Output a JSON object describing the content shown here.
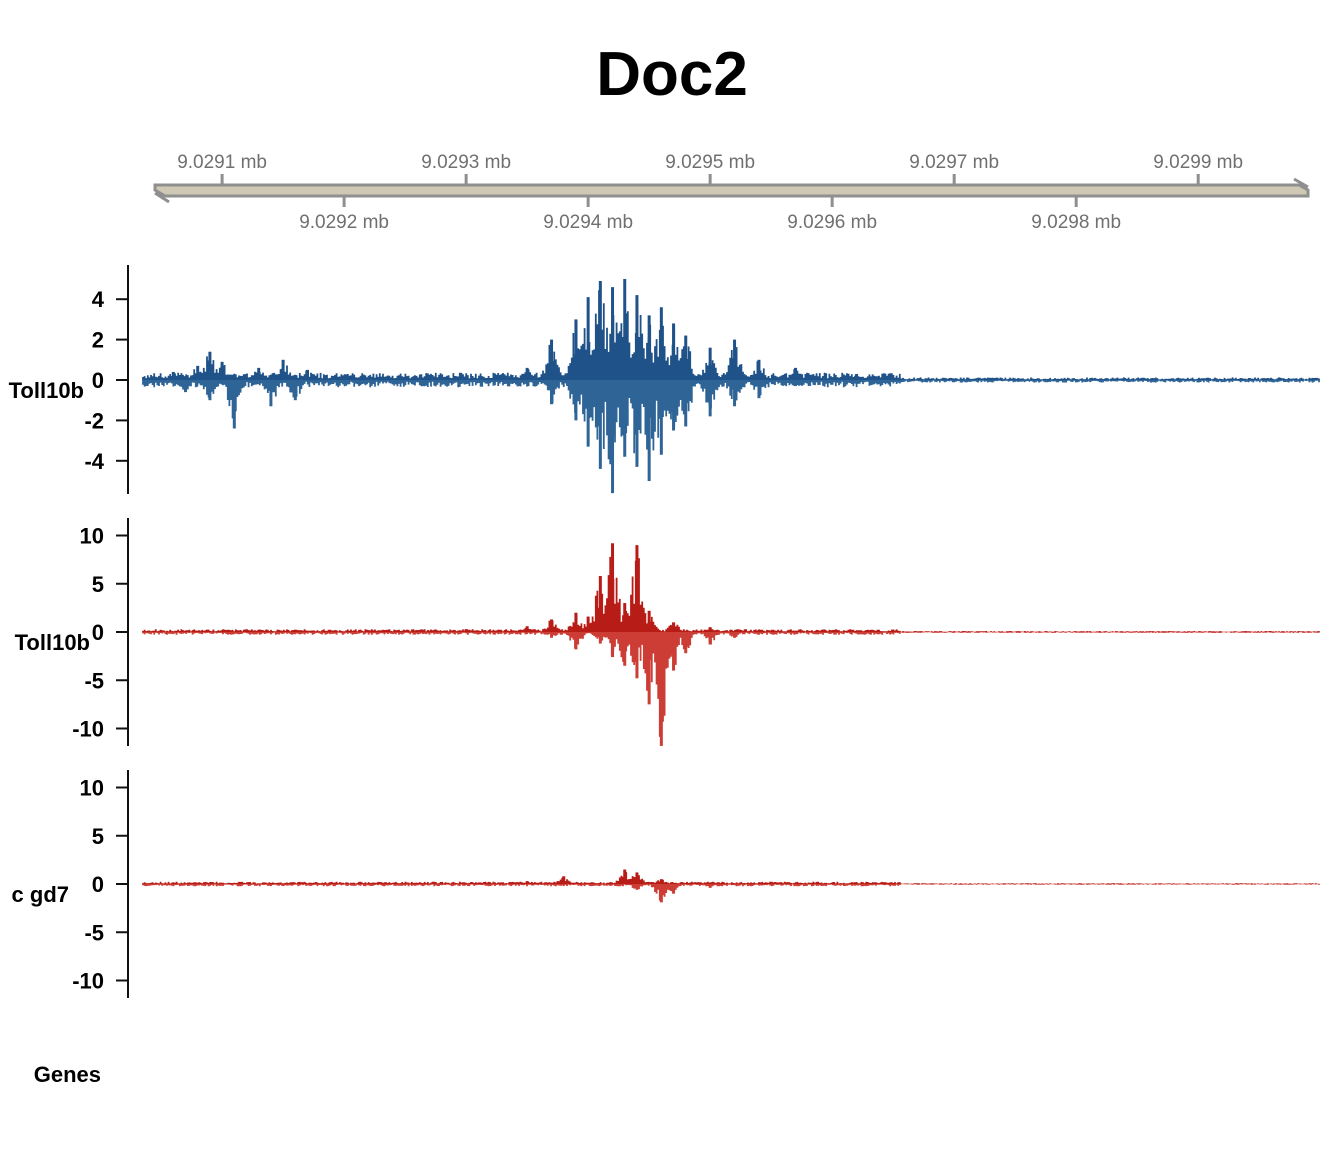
{
  "title": "Doc2",
  "colors": {
    "blue_track": "#1f5288",
    "blue_track_negative": "#2f6497",
    "red_track": "#b81c16",
    "red_track_negative": "#cc3d35",
    "axis": "#111111",
    "coord_axis": "#8f8f8f",
    "coord_axis_fill": "#cfc8b4",
    "coord_label": "#707070"
  },
  "chart_data": {
    "type": "genome-browser-tracks",
    "x_unit": "mb",
    "xlim": [
      9.029045,
      9.02999
    ],
    "genome_axis": {
      "upper_ticks": [
        {
          "position": 9.0291,
          "label": "9.0291 mb"
        },
        {
          "position": 9.0293,
          "label": "9.0293 mb"
        },
        {
          "position": 9.0295,
          "label": "9.0295 mb"
        },
        {
          "position": 9.0297,
          "label": "9.0297 mb"
        },
        {
          "position": 9.0299,
          "label": "9.0299 mb"
        }
      ],
      "lower_ticks": [
        {
          "position": 9.0292,
          "label": "9.0292 mb"
        },
        {
          "position": 9.0294,
          "label": "9.0294 mb"
        },
        {
          "position": 9.0296,
          "label": "9.0296 mb"
        },
        {
          "position": 9.0298,
          "label": "9.0298 mb"
        }
      ]
    },
    "tracks": [
      {
        "name": "Toll10b",
        "color": "#1f5288",
        "ylim": [
          -5.7,
          5.7
        ],
        "yticks": [
          {
            "value": 4,
            "label": "4"
          },
          {
            "value": 2,
            "label": "2"
          },
          {
            "value": 0,
            "label": "0"
          },
          {
            "value": -2,
            "label": "-2"
          },
          {
            "value": -4,
            "label": "-4"
          }
        ],
        "positive_peaks": [
          {
            "x": 9.02906,
            "y": 0.4
          },
          {
            "x": 9.02908,
            "y": 0.7
          },
          {
            "x": 9.02909,
            "y": 1.4
          },
          {
            "x": 9.0291,
            "y": 0.9
          },
          {
            "x": 9.02913,
            "y": 0.6
          },
          {
            "x": 9.02915,
            "y": 1.0
          },
          {
            "x": 9.02917,
            "y": 0.5
          },
          {
            "x": 9.02935,
            "y": 0.6
          },
          {
            "x": 9.02937,
            "y": 2.0
          },
          {
            "x": 9.02939,
            "y": 3.0
          },
          {
            "x": 9.0294,
            "y": 4.1
          },
          {
            "x": 9.02941,
            "y": 4.9
          },
          {
            "x": 9.02942,
            "y": 4.6
          },
          {
            "x": 9.02943,
            "y": 5.0
          },
          {
            "x": 9.02944,
            "y": 4.2
          },
          {
            "x": 9.02945,
            "y": 3.2
          },
          {
            "x": 9.02946,
            "y": 3.6
          },
          {
            "x": 9.02947,
            "y": 2.8
          },
          {
            "x": 9.02948,
            "y": 2.2
          },
          {
            "x": 9.0295,
            "y": 1.6
          },
          {
            "x": 9.02952,
            "y": 2.0
          },
          {
            "x": 9.02954,
            "y": 1.0
          },
          {
            "x": 9.02957,
            "y": 0.6
          },
          {
            "x": 9.02962,
            "y": 0.3
          }
        ],
        "negative_peaks": [
          {
            "x": 9.02907,
            "y": -0.6
          },
          {
            "x": 9.02909,
            "y": -1.0
          },
          {
            "x": 9.02911,
            "y": -2.4
          },
          {
            "x": 9.02914,
            "y": -1.3
          },
          {
            "x": 9.02916,
            "y": -1.0
          },
          {
            "x": 9.02937,
            "y": -1.2
          },
          {
            "x": 9.02939,
            "y": -2.0
          },
          {
            "x": 9.0294,
            "y": -3.3
          },
          {
            "x": 9.02941,
            "y": -4.4
          },
          {
            "x": 9.02942,
            "y": -5.6
          },
          {
            "x": 9.02943,
            "y": -3.8
          },
          {
            "x": 9.02944,
            "y": -4.3
          },
          {
            "x": 9.02945,
            "y": -5.0
          },
          {
            "x": 9.02946,
            "y": -3.7
          },
          {
            "x": 9.02947,
            "y": -2.5
          },
          {
            "x": 9.02948,
            "y": -2.3
          },
          {
            "x": 9.0295,
            "y": -1.8
          },
          {
            "x": 9.02952,
            "y": -1.3
          },
          {
            "x": 9.02954,
            "y": -0.9
          },
          {
            "x": 9.02957,
            "y": -0.3
          }
        ]
      },
      {
        "name": "Toll10b",
        "color": "#b81c16",
        "ylim": [
          -12,
          12
        ],
        "yticks": [
          {
            "value": 10,
            "label": "10"
          },
          {
            "value": 5,
            "label": "5"
          },
          {
            "value": 0,
            "label": "0"
          },
          {
            "value": -5,
            "label": "-5"
          },
          {
            "value": -10,
            "label": "-10"
          }
        ],
        "positive_peaks": [
          {
            "x": 9.0293,
            "y": 0.3
          },
          {
            "x": 9.02935,
            "y": 0.6
          },
          {
            "x": 9.02937,
            "y": 1.3
          },
          {
            "x": 9.02939,
            "y": 2.0
          },
          {
            "x": 9.0294,
            "y": 1.6
          },
          {
            "x": 9.02941,
            "y": 5.8
          },
          {
            "x": 9.02942,
            "y": 9.2
          },
          {
            "x": 9.02943,
            "y": 3.0
          },
          {
            "x": 9.02944,
            "y": 9.0
          },
          {
            "x": 9.02945,
            "y": 2.2
          },
          {
            "x": 9.02947,
            "y": 1.0
          },
          {
            "x": 9.0295,
            "y": 0.5
          },
          {
            "x": 9.02954,
            "y": 0.2
          }
        ],
        "negative_peaks": [
          {
            "x": 9.02937,
            "y": -0.6
          },
          {
            "x": 9.02939,
            "y": -1.8
          },
          {
            "x": 9.02941,
            "y": -1.2
          },
          {
            "x": 9.02942,
            "y": -2.6
          },
          {
            "x": 9.02943,
            "y": -3.5
          },
          {
            "x": 9.02944,
            "y": -4.8
          },
          {
            "x": 9.02945,
            "y": -7.5
          },
          {
            "x": 9.02946,
            "y": -11.8
          },
          {
            "x": 9.02947,
            "y": -4.0
          },
          {
            "x": 9.02948,
            "y": -2.2
          },
          {
            "x": 9.0295,
            "y": -1.3
          },
          {
            "x": 9.02952,
            "y": -0.6
          }
        ]
      },
      {
        "name": "c gd7",
        "color": "#b81c16",
        "ylim": [
          -12,
          12
        ],
        "yticks": [
          {
            "value": 10,
            "label": "10"
          },
          {
            "value": 5,
            "label": "5"
          },
          {
            "value": 0,
            "label": "0"
          },
          {
            "value": -5,
            "label": "-5"
          },
          {
            "value": -10,
            "label": "-10"
          }
        ],
        "positive_peaks": [
          {
            "x": 9.02935,
            "y": 0.3
          },
          {
            "x": 9.02938,
            "y": 0.8
          },
          {
            "x": 9.02943,
            "y": 1.5
          },
          {
            "x": 9.02944,
            "y": 1.2
          },
          {
            "x": 9.02946,
            "y": 0.5
          }
        ],
        "negative_peaks": [
          {
            "x": 9.02944,
            "y": -0.6
          },
          {
            "x": 9.02946,
            "y": -1.9
          },
          {
            "x": 9.02947,
            "y": -1.0
          },
          {
            "x": 9.0295,
            "y": -0.4
          }
        ]
      }
    ],
    "gene_track": {
      "name": "Genes",
      "features": []
    }
  }
}
